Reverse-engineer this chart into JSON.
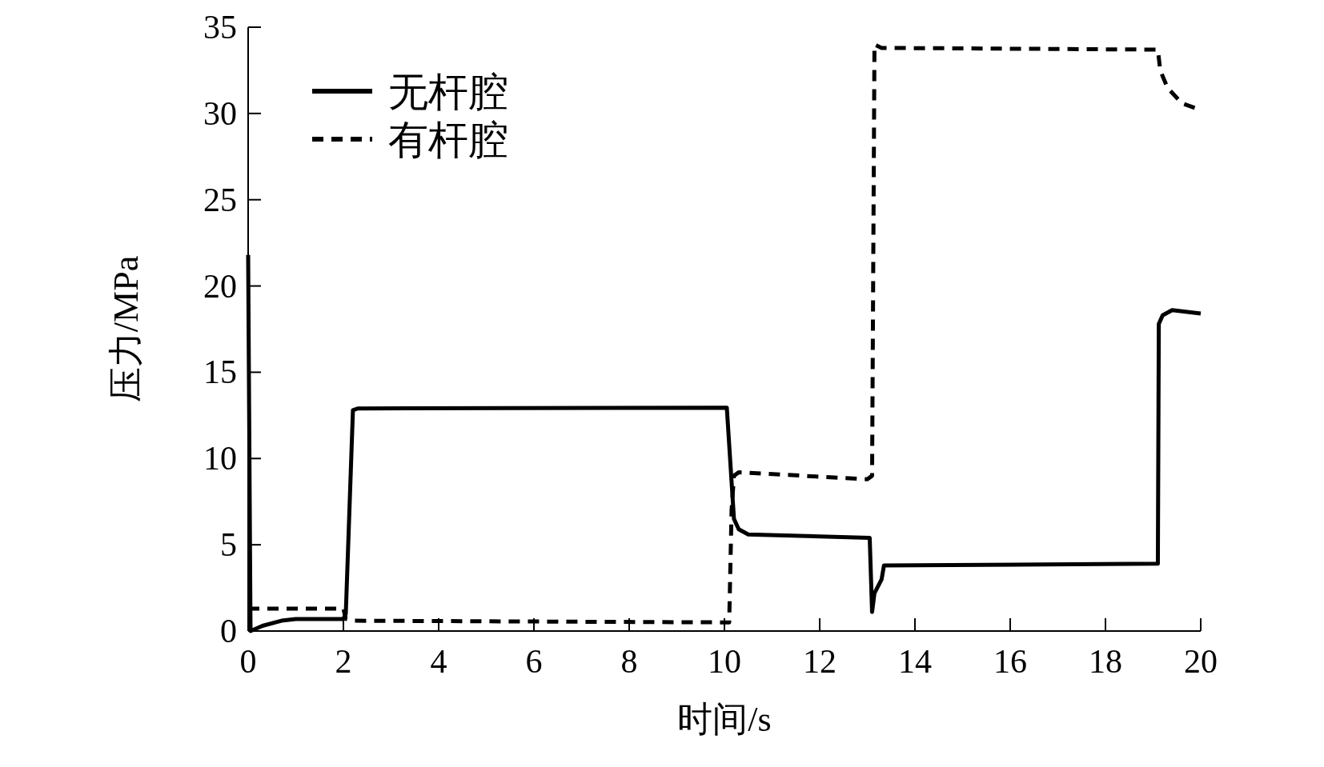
{
  "chart_data": {
    "type": "line",
    "xlabel": "时间/s",
    "ylabel": "压力/MPa",
    "xlim": [
      0,
      20
    ],
    "ylim": [
      0,
      35
    ],
    "xticks": [
      0,
      2,
      4,
      6,
      8,
      10,
      12,
      14,
      16,
      18,
      20
    ],
    "yticks": [
      0,
      5,
      10,
      15,
      20,
      25,
      30,
      35
    ],
    "grid": false,
    "legend": "top left",
    "marker": "none",
    "series": [
      {
        "name": "无杆腔",
        "color": "#000000",
        "line_style": "solid",
        "x": [
          0,
          0.05,
          0.3,
          0.7,
          1,
          2.0,
          2.05,
          2.2,
          2.3,
          10.05,
          10.2,
          10.3,
          10.5,
          13.05,
          13.1,
          13.15,
          13.3,
          13.35,
          19.1,
          19.12,
          19.2,
          19.4,
          20
        ],
        "values": [
          21.8,
          0,
          0.3,
          0.6,
          0.7,
          0.7,
          1.0,
          12.8,
          12.9,
          12.95,
          6.5,
          5.9,
          5.6,
          5.4,
          1.1,
          2.2,
          3.0,
          3.8,
          3.9,
          17.8,
          18.3,
          18.6,
          18.4
        ]
      },
      {
        "name": "有杆腔",
        "color": "#000000",
        "line_style": "dashed",
        "x": [
          0,
          2.0,
          2.05,
          2.2,
          10.1,
          10.15,
          10.2,
          10.3,
          13.0,
          13.1,
          13.15,
          13.3,
          19.1,
          19.15,
          19.3,
          19.6,
          20
        ],
        "values": [
          1.3,
          1.3,
          0.7,
          0.6,
          0.5,
          7,
          9.0,
          9.2,
          8.8,
          9,
          34,
          33.8,
          33.7,
          32.5,
          31.5,
          30.6,
          30.2
        ]
      }
    ]
  }
}
